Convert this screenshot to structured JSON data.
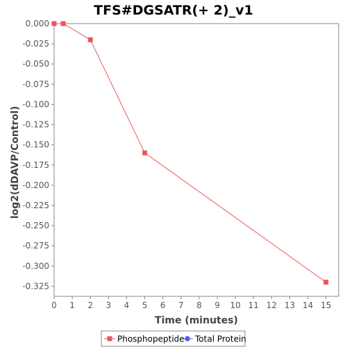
{
  "chart_data": {
    "type": "line",
    "title": "TFS#DGSATR(+ 2)_v1",
    "xlabel": "Time (minutes)",
    "ylabel": "log2(dDAVP/Control)",
    "xlim": [
      0,
      15.7
    ],
    "ylim": [
      -0.3375,
      0.0
    ],
    "x_ticks": [
      0,
      1,
      2,
      3,
      4,
      5,
      6,
      7,
      8,
      9,
      10,
      11,
      12,
      13,
      14,
      15
    ],
    "y_ticks": [
      0.0,
      -0.025,
      -0.05,
      -0.075,
      -0.1,
      -0.125,
      -0.15,
      -0.175,
      -0.2,
      -0.225,
      -0.25,
      -0.275,
      -0.3,
      -0.325
    ],
    "y_tick_labels": [
      "0.000",
      "-0.025",
      "-0.050",
      "-0.075",
      "-0.100",
      "-0.125",
      "-0.150",
      "-0.175",
      "-0.200",
      "-0.225",
      "-0.250",
      "-0.275",
      "-0.300",
      "-0.325"
    ],
    "grid": false,
    "legend_position": "bottom",
    "series": [
      {
        "name": "Phosphopeptide",
        "color": "#e8585a",
        "marker": "square",
        "x": [
          0,
          0.5,
          2,
          5,
          15
        ],
        "y": [
          0.0,
          0.0,
          -0.02,
          -0.16,
          -0.32
        ]
      },
      {
        "name": "Total Protein",
        "color": "#5a5ae8",
        "marker": "circle",
        "x": [],
        "y": []
      }
    ]
  }
}
